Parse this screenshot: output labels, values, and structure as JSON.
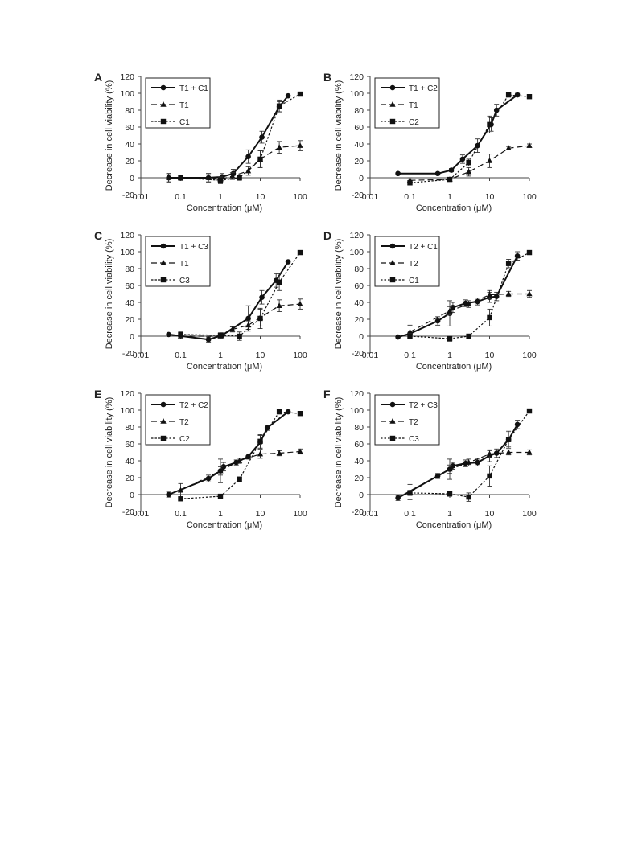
{
  "figure": {
    "xlabel": "Concentration (μM)",
    "ylabel": "Decrease in cell viability (%)"
  },
  "chart_data": [
    {
      "panel": "A",
      "type": "line",
      "x_scale": "log",
      "xlim": [
        0.01,
        100
      ],
      "ylim": [
        -20,
        120
      ],
      "xticks": [
        "0.01",
        "0.1",
        "1",
        "10",
        "100"
      ],
      "yticks": [
        "-20",
        "0",
        "20",
        "40",
        "60",
        "80",
        "100",
        "120"
      ],
      "xlabel": "Concentration (μM)",
      "ylabel": "Decrease in cell viability (%)",
      "legend_position": "top-left",
      "series": [
        {
          "name": "T1 + C1",
          "line": "solid",
          "marker": "circle",
          "x": [
            0.05,
            0.1,
            0.5,
            1.1,
            2.1,
            5,
            11,
            30,
            50
          ],
          "y": [
            0,
            0,
            0,
            1,
            5,
            25,
            48,
            84,
            97
          ],
          "err": [
            5,
            3,
            5,
            4,
            5,
            8,
            7,
            6,
            0
          ]
        },
        {
          "name": "T1",
          "line": "dashed",
          "marker": "triangle",
          "x": [
            0.05,
            0.1,
            0.5,
            1,
            2,
            5,
            10,
            30,
            100
          ],
          "y": [
            0,
            0,
            0,
            -2,
            2,
            8,
            22,
            36,
            38
          ],
          "err": [
            5,
            3,
            5,
            3,
            4,
            5,
            10,
            7,
            6
          ]
        },
        {
          "name": "C1",
          "line": "dotted",
          "marker": "square",
          "x": [
            0.1,
            1,
            3,
            10,
            30,
            100
          ],
          "y": [
            0,
            -3,
            0,
            22,
            85,
            99
          ],
          "err": [
            3,
            4,
            3,
            10,
            7,
            2
          ]
        }
      ]
    },
    {
      "panel": "B",
      "type": "line",
      "x_scale": "log",
      "xlim": [
        0.01,
        100
      ],
      "ylim": [
        -20,
        120
      ],
      "xticks": [
        "0.01",
        "0.1",
        "1",
        "10",
        "100"
      ],
      "yticks": [
        "-20",
        "0",
        "20",
        "40",
        "60",
        "80",
        "100",
        "120"
      ],
      "xlabel": "Concentration (μM)",
      "ylabel": "Decrease in cell viability (%)",
      "legend_position": "top-left",
      "series": [
        {
          "name": "T1 + C2",
          "line": "solid",
          "marker": "circle",
          "x": [
            0.05,
            0.5,
            1.1,
            2.1,
            5,
            11,
            15,
            50
          ],
          "y": [
            5,
            5,
            9,
            22,
            38,
            63,
            80,
            98
          ],
          "err": [
            1,
            1,
            2,
            5,
            8,
            8,
            7,
            2
          ]
        },
        {
          "name": "T1",
          "line": "dashed",
          "marker": "triangle",
          "x": [
            0.1,
            1,
            3,
            10,
            30,
            100
          ],
          "y": [
            -3,
            -2,
            7,
            20,
            35,
            38
          ],
          "err": [
            3,
            2,
            5,
            8,
            2,
            2
          ]
        },
        {
          "name": "C2",
          "line": "dotted",
          "marker": "square",
          "x": [
            0.1,
            1,
            3,
            10,
            30,
            100
          ],
          "y": [
            -6,
            -2,
            18,
            63,
            98,
            96
          ],
          "err": [
            2,
            2,
            4,
            10,
            2,
            2
          ]
        }
      ]
    },
    {
      "panel": "C",
      "type": "line",
      "x_scale": "log",
      "xlim": [
        0.01,
        100
      ],
      "ylim": [
        -20,
        120
      ],
      "xticks": [
        "0.01",
        "0.1",
        "1",
        "10",
        "100"
      ],
      "yticks": [
        "-20",
        "0",
        "20",
        "40",
        "60",
        "80",
        "100",
        "120"
      ],
      "xlabel": "Concentration (μM)",
      "ylabel": "Decrease in cell viability (%)",
      "legend_position": "top-left",
      "series": [
        {
          "name": "T1 + C3",
          "line": "solid",
          "marker": "circle",
          "x": [
            0.05,
            0.5,
            1.1,
            5,
            11,
            25,
            50
          ],
          "y": [
            2,
            -4,
            1,
            21,
            46,
            66,
            88
          ],
          "err": [
            1,
            3,
            3,
            15,
            8,
            8,
            2
          ]
        },
        {
          "name": "T1",
          "line": "dashed",
          "marker": "triangle",
          "x": [
            0.1,
            1,
            2,
            5,
            10,
            30,
            100
          ],
          "y": [
            0,
            0,
            8,
            13,
            22,
            36,
            38
          ],
          "err": [
            2,
            3,
            3,
            5,
            10,
            7,
            6
          ]
        },
        {
          "name": "C3",
          "line": "dotted",
          "marker": "square",
          "x": [
            0.1,
            1,
            3,
            10,
            30,
            100
          ],
          "y": [
            2,
            1,
            0,
            21,
            64,
            99
          ],
          "err": [
            3,
            3,
            5,
            12,
            10,
            2
          ]
        }
      ]
    },
    {
      "panel": "D",
      "type": "line",
      "x_scale": "log",
      "xlim": [
        0.01,
        100
      ],
      "ylim": [
        -20,
        120
      ],
      "xticks": [
        "0.01",
        "0.1",
        "1",
        "10",
        "100"
      ],
      "yticks": [
        "-20",
        "0",
        "20",
        "40",
        "60",
        "80",
        "100",
        "120"
      ],
      "xlabel": "Concentration (μM)",
      "ylabel": "Decrease in cell viability (%)",
      "legend_position": "top-left",
      "series": [
        {
          "name": "T2 + C1",
          "line": "solid",
          "marker": "circle",
          "x": [
            0.05,
            0.1,
            0.5,
            1,
            1.2,
            2.5,
            5,
            10,
            15,
            50
          ],
          "y": [
            -1,
            3,
            18,
            27,
            34,
            39,
            41,
            46,
            47,
            95
          ],
          "err": [
            1,
            3,
            5,
            15,
            6,
            4,
            4,
            6,
            5,
            5
          ]
        },
        {
          "name": "T2",
          "line": "dashed",
          "marker": "triangle",
          "x": [
            0.1,
            1,
            3,
            10,
            30,
            100
          ],
          "y": [
            5,
            30,
            38,
            49,
            50,
            50
          ],
          "err": [
            8,
            5,
            4,
            5,
            3,
            4
          ]
        },
        {
          "name": "C1",
          "line": "dotted",
          "marker": "square",
          "x": [
            0.1,
            1,
            3,
            10,
            30,
            100
          ],
          "y": [
            0,
            -3,
            0,
            22,
            86,
            99
          ],
          "err": [
            3,
            3,
            2,
            10,
            5,
            2
          ]
        }
      ]
    },
    {
      "panel": "E",
      "type": "line",
      "x_scale": "log",
      "xlim": [
        0.01,
        100
      ],
      "ylim": [
        -20,
        120
      ],
      "xticks": [
        "0.01",
        "0.1",
        "1",
        "10",
        "100"
      ],
      "yticks": [
        "-20",
        "0",
        "20",
        "40",
        "60",
        "80",
        "100",
        "120"
      ],
      "xlabel": "Concentration (μM)",
      "ylabel": "Decrease in cell viability (%)",
      "legend_position": "top-left",
      "series": [
        {
          "name": "T2 + C2",
          "line": "solid",
          "marker": "circle",
          "x": [
            0.05,
            0.5,
            1,
            1.2,
            2.5,
            5,
            10,
            15,
            50
          ],
          "y": [
            0,
            19,
            28,
            33,
            38,
            45,
            62,
            79,
            98
          ],
          "err": [
            3,
            4,
            14,
            5,
            3,
            3,
            8,
            3,
            2
          ]
        },
        {
          "name": "T2",
          "line": "dashed",
          "marker": "triangle",
          "x": [
            0.1,
            1,
            3,
            10,
            30,
            100
          ],
          "y": [
            5,
            28,
            40,
            48,
            49,
            51
          ],
          "err": [
            8,
            5,
            3,
            5,
            3,
            3
          ]
        },
        {
          "name": "C2",
          "line": "dotted",
          "marker": "square",
          "x": [
            0.1,
            1,
            3,
            10,
            30,
            100
          ],
          "y": [
            -5,
            -2,
            18,
            63,
            98,
            96
          ],
          "err": [
            2,
            2,
            3,
            8,
            2,
            2
          ]
        }
      ]
    },
    {
      "panel": "F",
      "type": "line",
      "x_scale": "log",
      "xlim": [
        0.01,
        100
      ],
      "ylim": [
        -20,
        120
      ],
      "xticks": [
        "0.01",
        "0.1",
        "1",
        "10",
        "100"
      ],
      "yticks": [
        "-20",
        "0",
        "20",
        "40",
        "60",
        "80",
        "100",
        "120"
      ],
      "xlabel": "Concentration (μM)",
      "ylabel": "Decrease in cell viability (%)",
      "legend_position": "top-left",
      "series": [
        {
          "name": "T2 + C3",
          "line": "solid",
          "marker": "circle",
          "x": [
            0.05,
            0.5,
            1,
            1.2,
            2.5,
            5,
            10,
            15,
            30,
            50
          ],
          "y": [
            -4,
            22,
            30,
            34,
            37,
            38,
            46,
            49,
            65,
            83
          ],
          "err": [
            3,
            3,
            12,
            4,
            4,
            4,
            7,
            5,
            8,
            5
          ]
        },
        {
          "name": "T2",
          "line": "dashed",
          "marker": "triangle",
          "x": [
            0.1,
            1,
            3,
            10,
            30,
            100
          ],
          "y": [
            3,
            30,
            38,
            48,
            50,
            50
          ],
          "err": [
            9,
            5,
            4,
            4,
            3,
            3
          ]
        },
        {
          "name": "C3",
          "line": "dotted",
          "marker": "square",
          "x": [
            0.1,
            1,
            3,
            10,
            30,
            100
          ],
          "y": [
            2,
            1,
            -3,
            22,
            65,
            99
          ],
          "err": [
            3,
            3,
            5,
            12,
            10,
            2
          ]
        }
      ]
    }
  ]
}
